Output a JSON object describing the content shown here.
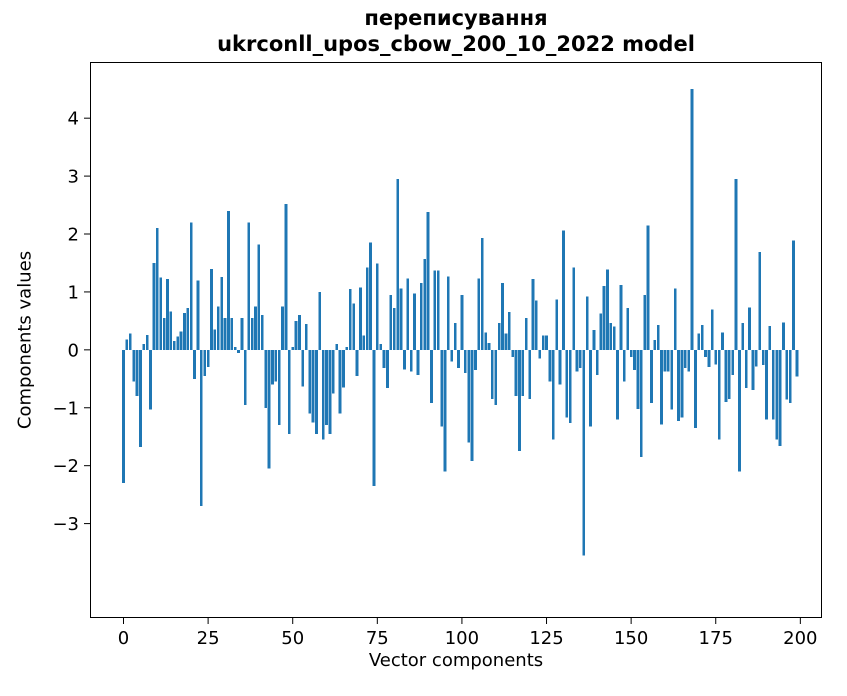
{
  "figure": {
    "title_line1": "переписування",
    "title_line2": "ukrconll_upos_cbow_200_10_2022 model",
    "xlabel": "Vector components",
    "ylabel": "Components values"
  },
  "chart_data": {
    "type": "bar",
    "title": "переписування\nukrconll_upos_cbow_200_10_2022 model",
    "xlabel": "Vector components",
    "ylabel": "Components values",
    "bar_color": "#1f77b4",
    "axis_color": "#000000",
    "background_color": "#ffffff",
    "grid": false,
    "legend": null,
    "x_start": 0,
    "bar_width_data_units": 0.8,
    "xticks": [
      0,
      25,
      50,
      75,
      100,
      125,
      150,
      175,
      200
    ],
    "yticks": [
      -3,
      -2,
      -1,
      0,
      1,
      2,
      3,
      4
    ],
    "xlim": [
      -9.9,
      206.4
    ],
    "ylim": [
      -4.63,
      4.97
    ],
    "values": [
      -2.3,
      0.18,
      0.28,
      -0.55,
      -0.8,
      -1.68,
      0.1,
      0.26,
      -1.03,
      1.5,
      2.1,
      1.25,
      0.55,
      1.22,
      0.66,
      0.15,
      0.23,
      0.32,
      0.64,
      0.72,
      2.2,
      -0.5,
      1.2,
      -2.7,
      -0.45,
      -0.3,
      1.4,
      0.35,
      0.75,
      1.26,
      0.55,
      2.4,
      0.55,
      0.05,
      -0.05,
      0.55,
      -0.95,
      2.2,
      0.55,
      0.75,
      1.82,
      0.6,
      -1.0,
      -2.05,
      -0.6,
      -0.55,
      -1.3,
      0.75,
      2.52,
      -1.45,
      0.05,
      0.5,
      0.6,
      -0.63,
      0.45,
      -1.1,
      -1.25,
      -1.45,
      1.0,
      -1.55,
      -1.3,
      -1.45,
      -0.75,
      0.1,
      -1.1,
      -0.65,
      0.05,
      1.05,
      0.8,
      -0.45,
      1.08,
      0.25,
      1.42,
      1.85,
      -2.35,
      1.49,
      0.1,
      -0.31,
      -0.66,
      0.95,
      0.72,
      2.95,
      1.06,
      -0.34,
      1.23,
      -0.37,
      0.97,
      -0.43,
      1.15,
      1.57,
      2.38,
      -0.92,
      1.37,
      1.37,
      -1.32,
      -2.1,
      1.27,
      -0.2,
      0.46,
      -0.31,
      0.95,
      -0.4,
      -1.6,
      -1.92,
      -0.35,
      1.23,
      1.93,
      0.3,
      0.12,
      -0.85,
      -0.95,
      0.46,
      1.15,
      0.28,
      0.65,
      -0.12,
      -0.8,
      -1.75,
      -0.8,
      0.55,
      -0.85,
      1.22,
      0.85,
      -0.15,
      0.25,
      0.25,
      -0.55,
      -1.55,
      0.87,
      -0.6,
      2.06,
      -1.17,
      -1.26,
      1.42,
      -0.37,
      -0.31,
      -3.55,
      0.92,
      -1.32,
      0.34,
      -0.43,
      0.63,
      1.1,
      1.39,
      0.46,
      0.4,
      -1.2,
      1.12,
      -0.55,
      0.72,
      -0.12,
      -0.35,
      -1.02,
      -1.85,
      0.95,
      2.15,
      -0.92,
      0.17,
      0.43,
      -1.29,
      -0.37,
      -0.37,
      -1.03,
      1.06,
      -1.23,
      -1.17,
      -0.31,
      -0.37,
      4.5,
      -1.35,
      0.28,
      0.43,
      -0.12,
      -0.3,
      0.7,
      -0.25,
      -1.55,
      0.3,
      -0.9,
      -0.85,
      -0.43,
      2.95,
      -2.1,
      0.46,
      -0.66,
      0.73,
      -0.69,
      -0.29,
      1.69,
      -0.26,
      -1.2,
      0.41,
      -1.2,
      -1.55,
      -1.66,
      0.47,
      -0.86,
      -0.92,
      1.89,
      -0.46
    ]
  }
}
